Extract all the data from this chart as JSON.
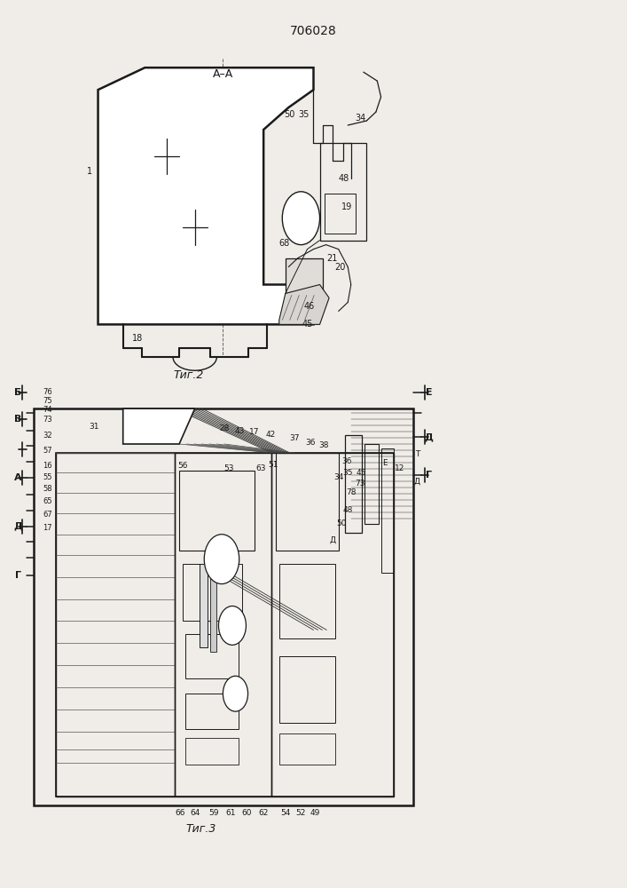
{
  "title": "706028",
  "fig2_caption": "Τиг.2",
  "fig3_caption": "Τиг.3",
  "bg_color": "#f0ede8",
  "line_color": "#1a1a1a"
}
